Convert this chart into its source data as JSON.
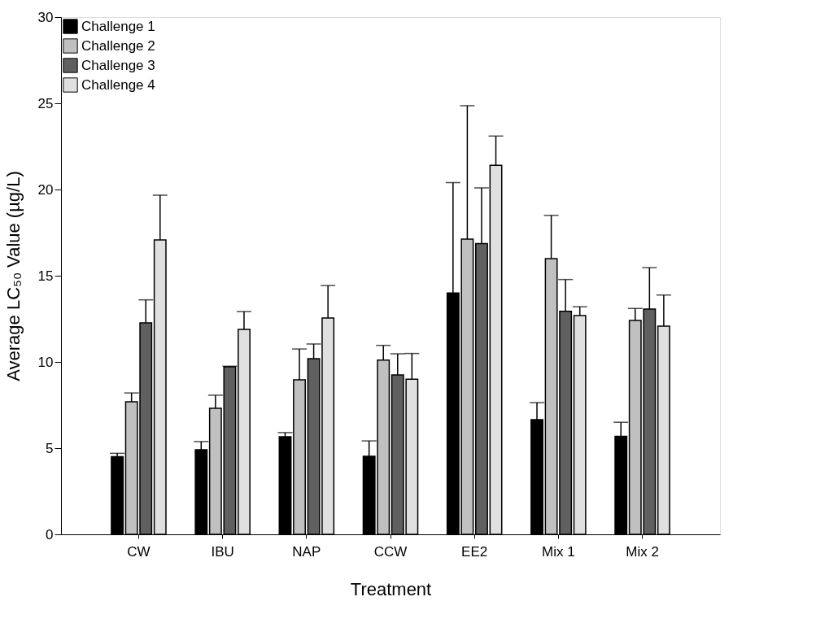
{
  "chart_data": {
    "type": "bar",
    "xlabel": "Treatment",
    "ylabel": "Average LC₅₀ Value (µg/L)",
    "categories": [
      "CW",
      "IBU",
      "NAP",
      "CCW",
      "EE2",
      "Mix 1",
      "Mix 2"
    ],
    "series": [
      {
        "name": "Challenge 1",
        "color": "#000000",
        "values": [
          4.5,
          4.9,
          5.66,
          4.53,
          14.0,
          6.65,
          5.68
        ],
        "errors": [
          [
            4.5,
            4.7
          ],
          [
            4.9,
            5.38
          ],
          [
            5.66,
            5.9
          ],
          [
            4.53,
            5.42
          ],
          [
            14.0,
            20.4
          ],
          [
            6.65,
            7.64
          ],
          [
            5.68,
            6.5
          ]
        ]
      },
      {
        "name": "Challenge 2",
        "color": "#c0c0c0",
        "values": [
          7.69,
          7.31,
          8.96,
          10.11,
          17.12,
          15.99,
          12.4
        ],
        "errors": [
          [
            7.69,
            8.2
          ],
          [
            7.31,
            8.07
          ],
          [
            8.96,
            10.75
          ],
          [
            10.11,
            10.96
          ],
          [
            17.12,
            24.86
          ],
          [
            15.99,
            18.5
          ],
          [
            12.4,
            13.1
          ]
        ]
      },
      {
        "name": "Challenge 3",
        "color": "#606060",
        "values": [
          12.26,
          9.72,
          10.19,
          9.25,
          16.86,
          12.94,
          13.07
        ],
        "errors": [
          [
            12.26,
            13.6
          ],
          [
            9.72,
            9.75
          ],
          [
            10.19,
            11.04
          ],
          [
            9.25,
            10.47
          ],
          [
            16.86,
            20.1
          ],
          [
            12.94,
            14.78
          ],
          [
            13.07,
            15.47
          ]
        ]
      },
      {
        "name": "Challenge 4",
        "color": "#e0e0e0",
        "values": [
          17.08,
          11.89,
          12.55,
          9.0,
          21.4,
          12.69,
          12.08
        ],
        "errors": [
          [
            17.08,
            19.67
          ],
          [
            11.89,
            12.92
          ],
          [
            12.55,
            14.43
          ],
          [
            9.0,
            10.49
          ],
          [
            21.4,
            23.1
          ],
          [
            12.69,
            13.2
          ],
          [
            12.08,
            13.88
          ]
        ]
      }
    ],
    "ylim": [
      0,
      30
    ],
    "yticks": [
      0,
      5,
      10,
      15,
      20,
      25,
      30
    ],
    "grid": false,
    "legend": "top left"
  }
}
